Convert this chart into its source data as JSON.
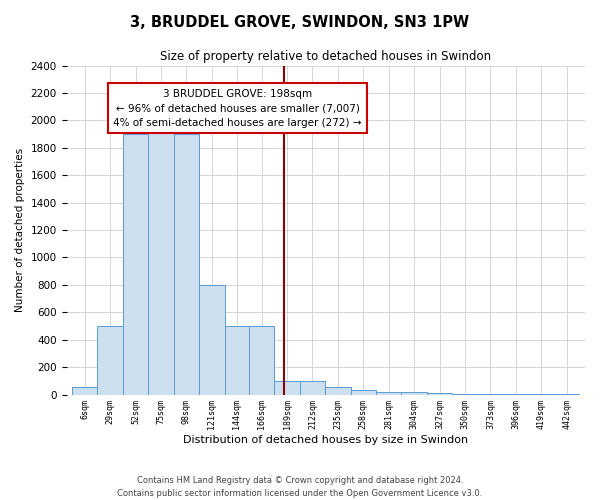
{
  "title": "3, BRUDDEL GROVE, SWINDON, SN3 1PW",
  "subtitle": "Size of property relative to detached houses in Swindon",
  "xlabel": "Distribution of detached houses by size in Swindon",
  "ylabel": "Number of detached properties",
  "footer_line1": "Contains HM Land Registry data © Crown copyright and database right 2024.",
  "footer_line2": "Contains public sector information licensed under the Open Government Licence v3.0.",
  "annotation_line1": "3 BRUDDEL GROVE: 198sqm",
  "annotation_line2": "← 96% of detached houses are smaller (7,007)",
  "annotation_line3": "4% of semi-detached houses are larger (272) →",
  "bar_edges": [
    6,
    29,
    52,
    75,
    98,
    121,
    144,
    166,
    189,
    212,
    235,
    258,
    281,
    304,
    327,
    350,
    373,
    396,
    419,
    442,
    465
  ],
  "bar_heights": [
    55,
    500,
    1900,
    1950,
    1900,
    800,
    500,
    500,
    100,
    100,
    55,
    30,
    20,
    20,
    10,
    5,
    5,
    5,
    5,
    5
  ],
  "bar_facecolor": "#cce0f0",
  "bar_edgecolor": "#5b9bd5",
  "vline_color": "#8b0000",
  "vline_value": 198,
  "annotation_box_edgecolor": "#cc0000",
  "annotation_box_facecolor": "#ffffff",
  "grid_color": "#d0d0d0",
  "bg_color": "#ffffff",
  "ylim": [
    0,
    2400
  ],
  "yticks": [
    0,
    200,
    400,
    600,
    800,
    1000,
    1200,
    1400,
    1600,
    1800,
    2000,
    2200,
    2400
  ]
}
